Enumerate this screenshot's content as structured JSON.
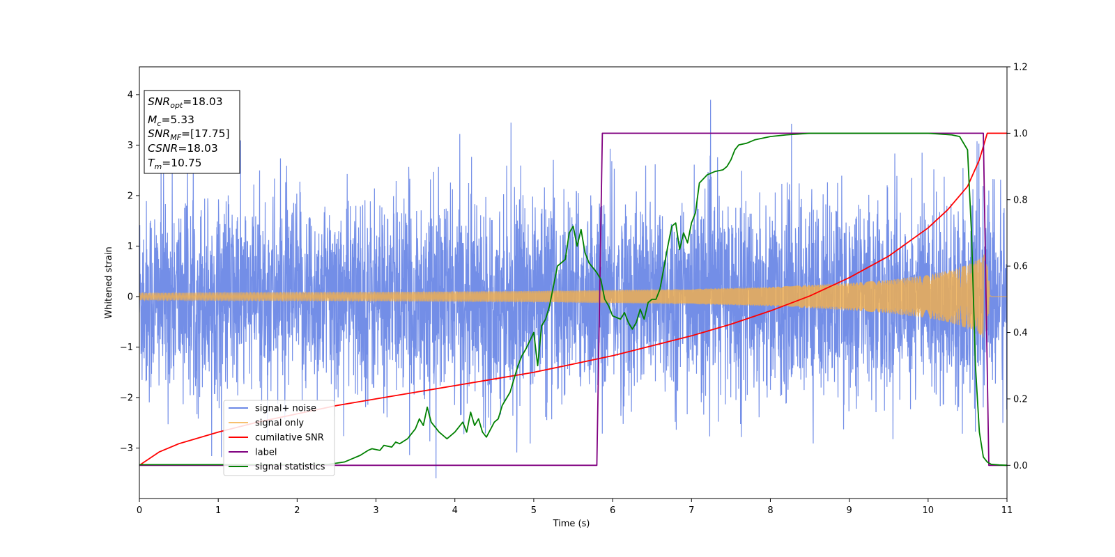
{
  "chart_data": {
    "type": "line",
    "xlabel": "Time (s)",
    "ylabel": "Whitened strain",
    "xlim": [
      0,
      11
    ],
    "ylim_left": [
      -4.0,
      4.55
    ],
    "ylim_right": [
      -0.1,
      1.2
    ],
    "x_ticks": [
      0,
      1,
      2,
      3,
      4,
      5,
      6,
      7,
      8,
      9,
      10,
      11
    ],
    "y_ticks_left": [
      -3,
      -2,
      -1,
      0,
      1,
      2,
      3,
      4
    ],
    "y_ticks_right": [
      0.0,
      0.2,
      0.4,
      0.6,
      0.8,
      1.0,
      1.2
    ],
    "y_tick_labels_left": [
      "−3",
      "−2",
      "−1",
      "0",
      "1",
      "2",
      "3",
      "4"
    ],
    "y_tick_labels_right": [
      "0.0",
      "0.2",
      "0.4",
      "0.6",
      "0.8",
      "1.0",
      "1.2"
    ],
    "grid": false,
    "legend_position": "lower-left",
    "annotation_box": {
      "position": "top-left",
      "lines": [
        {
          "main": "SNR",
          "sub": "opt",
          "rest": "=18.03"
        },
        {
          "main": "M",
          "sub": "c",
          "rest": "=5.33"
        },
        {
          "main": "SNR",
          "sub": "MF",
          "rest": "=[17.75]"
        },
        {
          "main": "CSNR",
          "sub": "",
          "rest": "=18.03"
        },
        {
          "main": "T",
          "sub": "m",
          "rest": "=10.75"
        }
      ]
    },
    "series": [
      {
        "name": "signal+ noise",
        "axis": "left",
        "color": "#6b88e6",
        "kind": "noise",
        "std": 0.92,
        "approx_range": [
          -3.6,
          4.15
        ],
        "merger_time": 10.75
      },
      {
        "name": "signal only",
        "axis": "left",
        "color": "#f5b04a",
        "kind": "chirp",
        "envelope_t": [
          0,
          1,
          2,
          3,
          4,
          5,
          6,
          7,
          8,
          9,
          9.5,
          10,
          10.3,
          10.5,
          10.65,
          10.72,
          10.75,
          10.8,
          11
        ],
        "envelope_amp": [
          0.07,
          0.08,
          0.085,
          0.09,
          0.1,
          0.11,
          0.13,
          0.15,
          0.19,
          0.27,
          0.33,
          0.43,
          0.53,
          0.63,
          0.75,
          0.85,
          0.6,
          0,
          0
        ]
      },
      {
        "name": "cumilative SNR",
        "axis": "right",
        "color": "#ff0000",
        "x": [
          0,
          0.25,
          0.5,
          1,
          1.5,
          2,
          2.5,
          3,
          3.5,
          4,
          4.5,
          5,
          5.5,
          6,
          6.5,
          7,
          7.5,
          8,
          8.5,
          9,
          9.5,
          10,
          10.25,
          10.5,
          10.65,
          10.75,
          11
        ],
        "y": [
          0.0,
          0.04,
          0.065,
          0.1,
          0.13,
          0.155,
          0.18,
          0.2,
          0.22,
          0.24,
          0.26,
          0.28,
          0.305,
          0.33,
          0.36,
          0.39,
          0.425,
          0.465,
          0.51,
          0.565,
          0.63,
          0.715,
          0.77,
          0.84,
          0.92,
          1.0,
          1.0
        ]
      },
      {
        "name": "label",
        "axis": "right",
        "color": "#800080",
        "x": [
          0,
          5.8,
          5.87,
          10.7,
          10.77,
          11
        ],
        "y": [
          0.0,
          0.0,
          1.0,
          1.0,
          0.0,
          0.0
        ]
      },
      {
        "name": "signal statistics",
        "axis": "right",
        "color": "#008000",
        "x": [
          0,
          0.5,
          1,
          1.5,
          2,
          2.4,
          2.6,
          2.8,
          2.9,
          2.95,
          3.05,
          3.1,
          3.2,
          3.25,
          3.3,
          3.4,
          3.5,
          3.55,
          3.6,
          3.65,
          3.7,
          3.8,
          3.9,
          4.0,
          4.1,
          4.15,
          4.2,
          4.25,
          4.3,
          4.35,
          4.4,
          4.5,
          4.55,
          4.6,
          4.7,
          4.8,
          4.85,
          4.9,
          5.0,
          5.05,
          5.1,
          5.15,
          5.2,
          5.3,
          5.4,
          5.45,
          5.5,
          5.55,
          5.6,
          5.65,
          5.7,
          5.8,
          5.85,
          5.9,
          5.95,
          6.0,
          6.1,
          6.15,
          6.2,
          6.25,
          6.3,
          6.35,
          6.4,
          6.45,
          6.5,
          6.55,
          6.6,
          6.7,
          6.75,
          6.8,
          6.85,
          6.9,
          6.95,
          7.0,
          7.05,
          7.1,
          7.2,
          7.3,
          7.4,
          7.45,
          7.5,
          7.55,
          7.6,
          7.7,
          7.8,
          7.9,
          8.0,
          8.2,
          8.5,
          9.0,
          9.5,
          10.0,
          10.3,
          10.4,
          10.5,
          10.55,
          10.6,
          10.65,
          10.7,
          10.75,
          10.8,
          10.9,
          11.0
        ],
        "y": [
          0.002,
          0.002,
          0.002,
          0.002,
          0.002,
          0.003,
          0.01,
          0.03,
          0.045,
          0.05,
          0.045,
          0.06,
          0.055,
          0.07,
          0.065,
          0.08,
          0.11,
          0.14,
          0.12,
          0.175,
          0.13,
          0.1,
          0.08,
          0.1,
          0.13,
          0.1,
          0.16,
          0.12,
          0.14,
          0.1,
          0.085,
          0.13,
          0.14,
          0.18,
          0.22,
          0.3,
          0.33,
          0.35,
          0.4,
          0.3,
          0.42,
          0.44,
          0.48,
          0.6,
          0.62,
          0.7,
          0.72,
          0.66,
          0.71,
          0.64,
          0.61,
          0.58,
          0.56,
          0.5,
          0.48,
          0.45,
          0.44,
          0.46,
          0.43,
          0.41,
          0.43,
          0.47,
          0.44,
          0.49,
          0.5,
          0.5,
          0.53,
          0.66,
          0.72,
          0.73,
          0.65,
          0.7,
          0.67,
          0.73,
          0.76,
          0.85,
          0.875,
          0.885,
          0.89,
          0.9,
          0.92,
          0.95,
          0.965,
          0.97,
          0.98,
          0.985,
          0.99,
          0.995,
          1.0,
          1.0,
          1.0,
          1.0,
          0.995,
          0.99,
          0.95,
          0.7,
          0.3,
          0.1,
          0.025,
          0.01,
          0.003,
          0.001,
          0.0
        ]
      }
    ]
  }
}
